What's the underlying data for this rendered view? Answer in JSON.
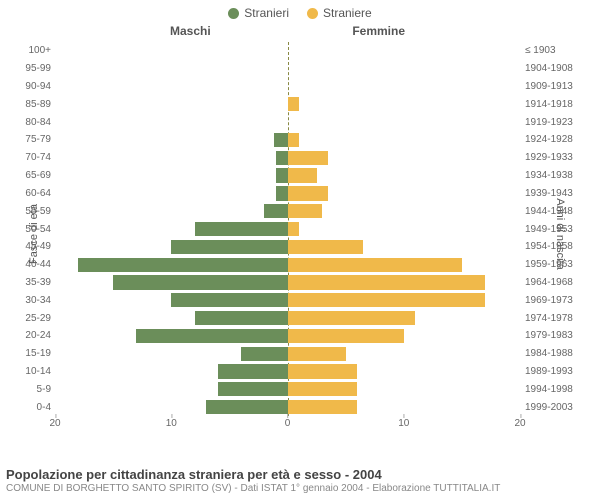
{
  "legend": {
    "male": {
      "label": "Stranieri",
      "color": "#6b8e5a"
    },
    "female": {
      "label": "Straniere",
      "color": "#f0b94a"
    }
  },
  "headers": {
    "left": "Maschi",
    "right": "Femmine"
  },
  "axis_titles": {
    "left": "Fasce di età",
    "right": "Anni di nascita"
  },
  "xaxis": {
    "max": 20,
    "ticks_left": [
      20,
      10,
      0
    ],
    "ticks_right": [
      0,
      10,
      20
    ]
  },
  "colors": {
    "male_bar": "#6b8e5a",
    "female_bar": "#f0b94a",
    "background": "#ffffff",
    "text": "#555555"
  },
  "rows": [
    {
      "age": "100+",
      "birth": "≤ 1903",
      "m": 0,
      "f": 0
    },
    {
      "age": "95-99",
      "birth": "1904-1908",
      "m": 0,
      "f": 0
    },
    {
      "age": "90-94",
      "birth": "1909-1913",
      "m": 0,
      "f": 0
    },
    {
      "age": "85-89",
      "birth": "1914-1918",
      "m": 0,
      "f": 1
    },
    {
      "age": "80-84",
      "birth": "1919-1923",
      "m": 0,
      "f": 0
    },
    {
      "age": "75-79",
      "birth": "1924-1928",
      "m": 1.2,
      "f": 1
    },
    {
      "age": "70-74",
      "birth": "1929-1933",
      "m": 1,
      "f": 3.5
    },
    {
      "age": "65-69",
      "birth": "1934-1938",
      "m": 1,
      "f": 2.5
    },
    {
      "age": "60-64",
      "birth": "1939-1943",
      "m": 1,
      "f": 3.5
    },
    {
      "age": "55-59",
      "birth": "1944-1948",
      "m": 2,
      "f": 3
    },
    {
      "age": "50-54",
      "birth": "1949-1953",
      "m": 8,
      "f": 1
    },
    {
      "age": "45-49",
      "birth": "1954-1958",
      "m": 10,
      "f": 6.5
    },
    {
      "age": "40-44",
      "birth": "1959-1963",
      "m": 18,
      "f": 15
    },
    {
      "age": "35-39",
      "birth": "1964-1968",
      "m": 15,
      "f": 17
    },
    {
      "age": "30-34",
      "birth": "1969-1973",
      "m": 10,
      "f": 17
    },
    {
      "age": "25-29",
      "birth": "1974-1978",
      "m": 8,
      "f": 11
    },
    {
      "age": "20-24",
      "birth": "1979-1983",
      "m": 13,
      "f": 10
    },
    {
      "age": "15-19",
      "birth": "1984-1988",
      "m": 4,
      "f": 5
    },
    {
      "age": "10-14",
      "birth": "1989-1993",
      "m": 6,
      "f": 6
    },
    {
      "age": "5-9",
      "birth": "1994-1998",
      "m": 6,
      "f": 6
    },
    {
      "age": "0-4",
      "birth": "1999-2003",
      "m": 7,
      "f": 6
    }
  ],
  "footer": {
    "title": "Popolazione per cittadinanza straniera per età e sesso - 2004",
    "sub": "COMUNE DI BORGHETTO SANTO SPIRITO (SV) - Dati ISTAT 1° gennaio 2004 - Elaborazione TUTTITALIA.IT"
  }
}
